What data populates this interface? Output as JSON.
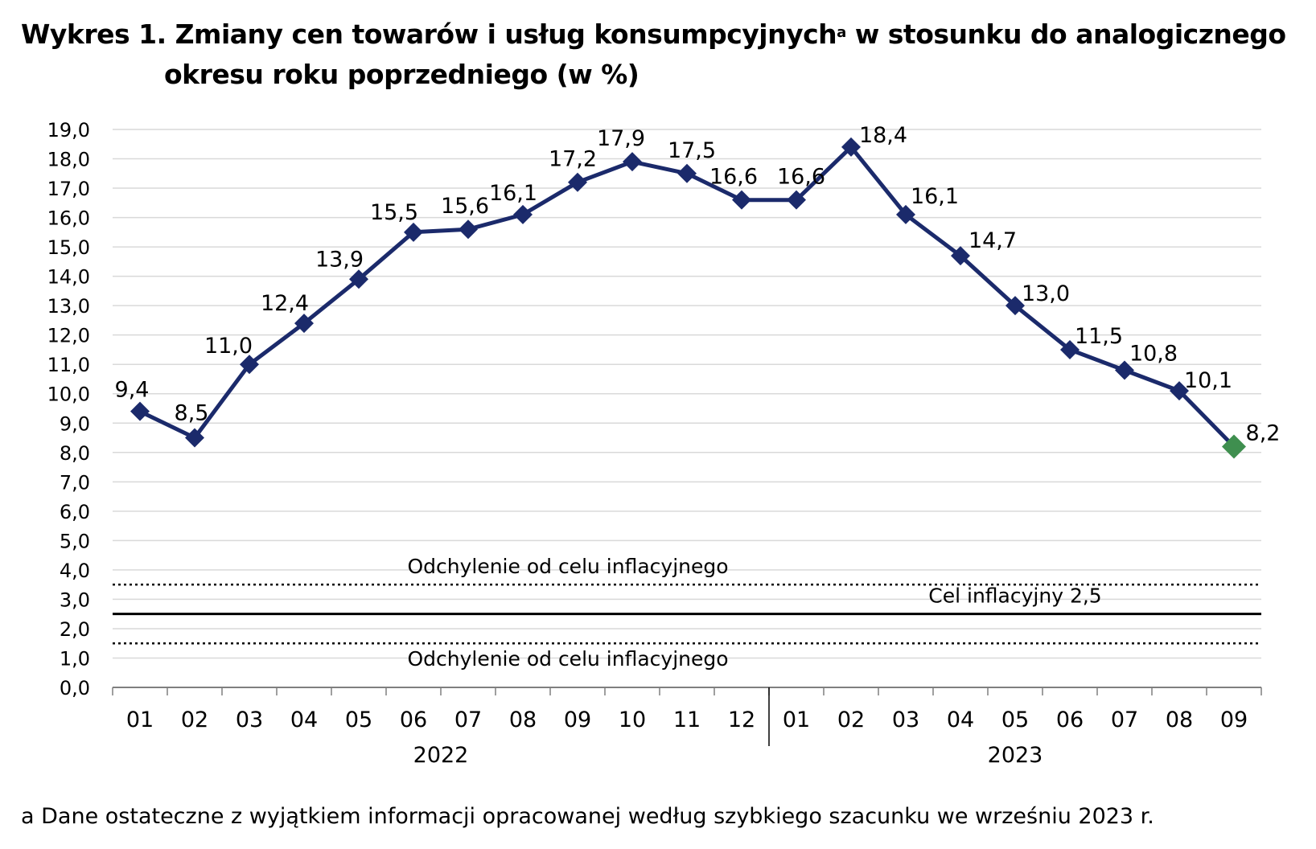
{
  "title": {
    "line1_pre": "Wykres 1. Zmiany cen towarów i usług konsumpcyjnych",
    "sup": "a",
    "line1_post": " w stosunku do analogicznego",
    "line2": "okresu roku poprzedniego (w %)"
  },
  "footnote": "a Dane ostateczne z wyjątkiem informacji opracowanej według szybkiego szacunku we wrześniu 2023 r.",
  "colors": {
    "series": "#1b2a6b",
    "last_point": "#3f8f4f",
    "grid": "#d9d9d9",
    "axis": "#7f7f7f",
    "reference": "#000000"
  },
  "chart_data": {
    "type": "line",
    "categories": [
      "01",
      "02",
      "03",
      "04",
      "05",
      "06",
      "07",
      "08",
      "09",
      "10",
      "11",
      "12",
      "01",
      "02",
      "03",
      "04",
      "05",
      "06",
      "07",
      "08",
      "09"
    ],
    "groups": [
      {
        "label": "2022",
        "from": 0,
        "to": 11
      },
      {
        "label": "2023",
        "from": 12,
        "to": 20
      }
    ],
    "series": [
      {
        "values": [
          9.4,
          8.5,
          11.0,
          12.4,
          13.9,
          15.5,
          15.6,
          16.1,
          17.2,
          17.9,
          17.5,
          16.6,
          16.6,
          18.4,
          16.1,
          14.7,
          13.0,
          11.5,
          10.8,
          10.1,
          8.2
        ]
      }
    ],
    "data_labels": [
      "9,4",
      "8,5",
      "11,0",
      "12,4",
      "13,9",
      "15,5",
      "15,6",
      "16,1",
      "17,2",
      "17,9",
      "17,5",
      "16,6",
      "16,6",
      "18,4",
      "16,1",
      "14,7",
      "13,0",
      "11,5",
      "10,8",
      "10,1",
      "8,2"
    ],
    "ylim": [
      0,
      19
    ],
    "y_ticks": [
      "0,0",
      "1,0",
      "2,0",
      "3,0",
      "4,0",
      "5,0",
      "6,0",
      "7,0",
      "8,0",
      "9,0",
      "10,0",
      "11,0",
      "12,0",
      "13,0",
      "14,0",
      "15,0",
      "16,0",
      "17,0",
      "18,0",
      "19,0"
    ],
    "grid": true,
    "reference_lines": [
      {
        "value": 3.5,
        "style": "dotted",
        "label": "Odchylenie od celu inflacyjnego"
      },
      {
        "value": 2.5,
        "style": "solid",
        "label": "Cel inflacyjny 2,5"
      },
      {
        "value": 1.5,
        "style": "dotted",
        "label": "Odchylenie od celu inflacyjnego"
      }
    ],
    "xlabel": "",
    "ylabel": ""
  }
}
